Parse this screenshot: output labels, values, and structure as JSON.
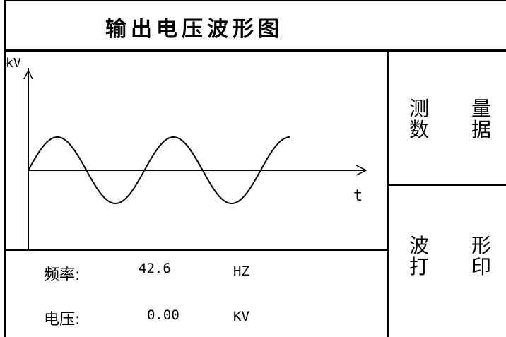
{
  "header": {
    "title": "输出电压波形图"
  },
  "waveform": {
    "y_axis_label": "kV",
    "x_axis_label": "t",
    "cycles": 2.25
  },
  "buttons": [
    {
      "line1_left": "测",
      "line1_right": "量",
      "line2_left": "数",
      "line2_right": "据"
    },
    {
      "line1_left": "波",
      "line1_right": "形",
      "line2_left": "打",
      "line2_right": "印"
    }
  ],
  "readings": {
    "frequency": {
      "label": "频率:",
      "value": "42.6",
      "unit": "HZ"
    },
    "voltage": {
      "label": "电压:",
      "value": "0.00",
      "unit": "KV"
    }
  }
}
